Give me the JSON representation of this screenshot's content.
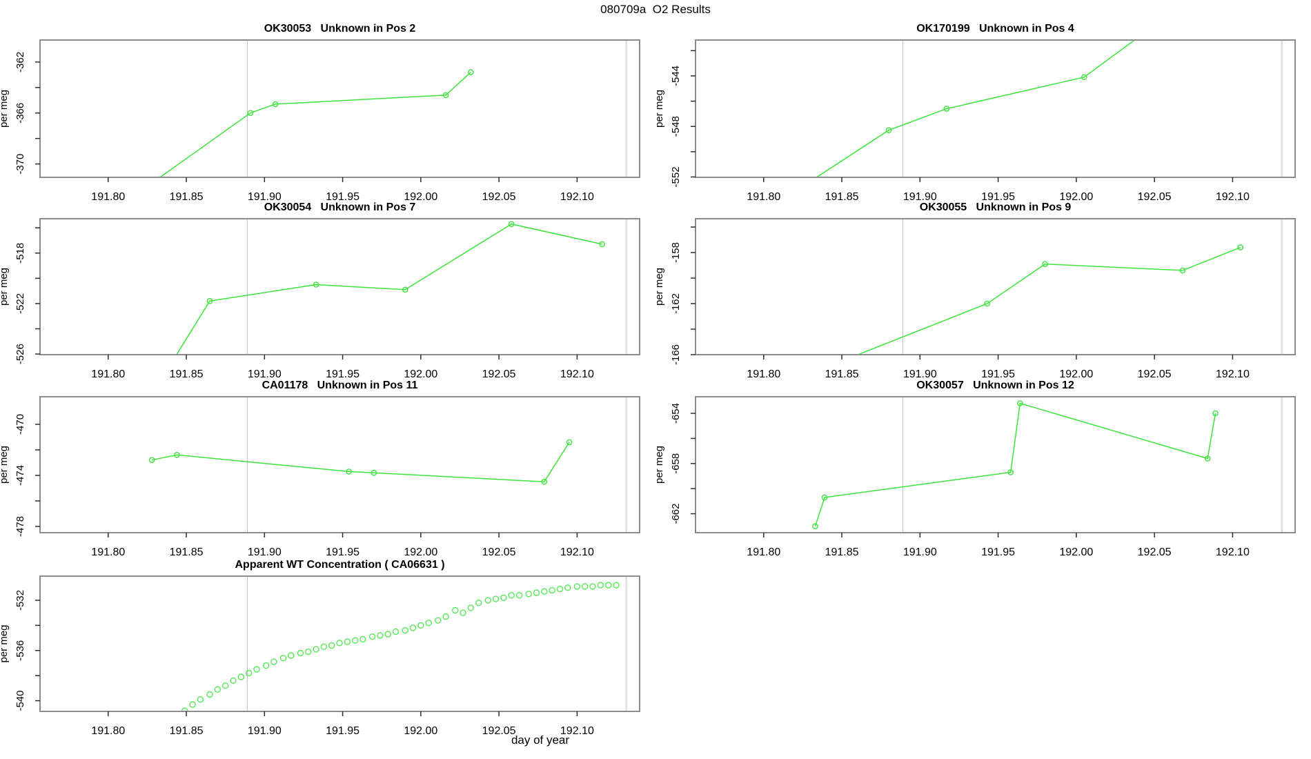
{
  "page_title": "080709a  O2 Results",
  "x_axis_label": "day of year",
  "y_axis_label": "per meg",
  "colors": {
    "series_green": "#3be43b",
    "scatter_green": "#55e855",
    "box_gray": "#8c8c8c",
    "tick_color": "#2b2b2b",
    "text_color": "#000000",
    "refline_early": "#c6c6c6",
    "refline_late": "#e3e3e3",
    "background": "#ffffff"
  },
  "chart_data": {
    "type": "line",
    "title": "080709a  O2 Results",
    "xlabel": "day of year",
    "ylabel": "per meg",
    "xlim": [
      191.7564,
      192.14
    ],
    "x_ticks": [
      191.8,
      191.85,
      191.9,
      191.95,
      192.0,
      192.05,
      192.1
    ],
    "x_tick_labels": [
      "191.80",
      "191.85",
      "191.90",
      "191.95",
      "192.00",
      "192.05",
      "192.10"
    ],
    "reference_lines_x": [
      191.889,
      192.1315
    ],
    "grid": "off",
    "legend": "none",
    "plots": [
      {
        "title": "OK30053   Unknown in Pos 2",
        "grid_pos": {
          "row": 0,
          "col": 0
        },
        "style": "line+markers",
        "ylim": [
          -371.05,
          -360.27
        ],
        "y_ticks_labeled": [
          -362,
          -366,
          -370
        ],
        "y_ticks_minor": [
          -364,
          -368
        ],
        "points": [
          [
            191.828,
            -371.5
          ],
          [
            191.891,
            -366.0
          ],
          [
            191.907,
            -365.3
          ],
          [
            192.016,
            -364.6
          ],
          [
            192.032,
            -362.8
          ]
        ]
      },
      {
        "title": "OK170199   Unknown in Pos 4",
        "grid_pos": {
          "row": 0,
          "col": 1
        },
        "style": "line+markers",
        "ylim": [
          -552.03,
          -541.16
        ],
        "y_ticks_labeled": [
          -544,
          -548,
          -552
        ],
        "y_ticks_minor": [
          -542,
          -546,
          -550
        ],
        "points": [
          [
            191.828,
            -552.5
          ],
          [
            191.88,
            -548.3
          ],
          [
            191.917,
            -546.6
          ],
          [
            192.005,
            -544.1
          ],
          [
            192.05,
            -540.0
          ]
        ]
      },
      {
        "title": "OK30054   Unknown in Pos 7",
        "grid_pos": {
          "row": 1,
          "col": 0
        },
        "style": "line+markers",
        "ylim": [
          -526.05,
          -515.28
        ],
        "y_ticks_labeled": [
          -518,
          -522,
          -526
        ],
        "y_ticks_minor": [
          -516,
          -520,
          -524
        ],
        "points": [
          [
            191.84,
            -526.8
          ],
          [
            191.865,
            -521.8
          ],
          [
            191.933,
            -520.5
          ],
          [
            191.99,
            -520.9
          ],
          [
            192.058,
            -515.7
          ],
          [
            192.116,
            -517.3
          ]
        ]
      },
      {
        "title": "OK30055   Unknown in Pos 9",
        "grid_pos": {
          "row": 1,
          "col": 1
        },
        "style": "line+markers",
        "ylim": [
          -166.0,
          -155.35
        ],
        "y_ticks_labeled": [
          -158,
          -162,
          -166
        ],
        "y_ticks_minor": [
          -156,
          -160,
          -164
        ],
        "points": [
          [
            191.85,
            -166.5
          ],
          [
            191.943,
            -162.0
          ],
          [
            191.98,
            -158.9
          ],
          [
            192.068,
            -159.4
          ],
          [
            192.105,
            -157.6
          ]
        ]
      },
      {
        "title": "CA01178   Unknown in Pos 11",
        "grid_pos": {
          "row": 2,
          "col": 0
        },
        "style": "line+markers",
        "ylim": [
          -478.49,
          -467.84
        ],
        "y_ticks_labeled": [
          -470,
          -474,
          -478
        ],
        "y_ticks_minor": [
          -472,
          -476
        ],
        "points": [
          [
            191.828,
            -472.8
          ],
          [
            191.844,
            -472.4
          ],
          [
            191.954,
            -473.7
          ],
          [
            191.97,
            -473.8
          ],
          [
            192.079,
            -474.5
          ],
          [
            192.095,
            -471.4
          ]
        ]
      },
      {
        "title": "OK30057   Unknown in Pos 12",
        "grid_pos": {
          "row": 2,
          "col": 1
        },
        "style": "line+markers",
        "ylim": [
          -663.51,
          -652.68
        ],
        "y_ticks_labeled": [
          -654,
          -658,
          -662
        ],
        "y_ticks_minor": [
          -656,
          -660
        ],
        "points": [
          [
            191.833,
            -663.0
          ],
          [
            191.839,
            -660.7
          ],
          [
            191.958,
            -658.7
          ],
          [
            191.964,
            -653.2
          ],
          [
            192.084,
            -657.6
          ],
          [
            192.089,
            -654.0
          ]
        ]
      },
      {
        "title": "Apparent WT Concentration ( CA06631 )",
        "grid_pos": {
          "row": 3,
          "col": 0
        },
        "style": "markers",
        "ylim": [
          -540.85,
          -530.08
        ],
        "y_ticks_labeled": [
          -532,
          -536,
          -540
        ],
        "y_ticks_minor": [
          -534,
          -538
        ],
        "points": [
          [
            191.849,
            -540.8
          ],
          [
            191.854,
            -540.3
          ],
          [
            191.859,
            -539.9
          ],
          [
            191.865,
            -539.5
          ],
          [
            191.87,
            -539.1
          ],
          [
            191.875,
            -538.8
          ],
          [
            191.88,
            -538.4
          ],
          [
            191.885,
            -538.1
          ],
          [
            191.89,
            -537.8
          ],
          [
            191.895,
            -537.5
          ],
          [
            191.901,
            -537.2
          ],
          [
            191.906,
            -536.9
          ],
          [
            191.912,
            -536.6
          ],
          [
            191.917,
            -536.4
          ],
          [
            191.923,
            -536.2
          ],
          [
            191.928,
            -536.1
          ],
          [
            191.933,
            -535.9
          ],
          [
            191.938,
            -535.7
          ],
          [
            191.943,
            -535.6
          ],
          [
            191.948,
            -535.4
          ],
          [
            191.953,
            -535.3
          ],
          [
            191.958,
            -535.2
          ],
          [
            191.963,
            -535.1
          ],
          [
            191.969,
            -534.9
          ],
          [
            191.974,
            -534.8
          ],
          [
            191.979,
            -534.7
          ],
          [
            191.984,
            -534.5
          ],
          [
            191.99,
            -534.4
          ],
          [
            191.995,
            -534.2
          ],
          [
            192.0,
            -534.0
          ],
          [
            192.005,
            -533.8
          ],
          [
            192.011,
            -533.6
          ],
          [
            192.016,
            -533.3
          ],
          [
            192.022,
            -532.8
          ],
          [
            192.027,
            -533.0
          ],
          [
            192.032,
            -532.6
          ],
          [
            192.037,
            -532.2
          ],
          [
            192.043,
            -532.0
          ],
          [
            192.048,
            -531.9
          ],
          [
            192.053,
            -531.8
          ],
          [
            192.058,
            -531.6
          ],
          [
            192.063,
            -531.6
          ],
          [
            192.069,
            -531.5
          ],
          [
            192.074,
            -531.4
          ],
          [
            192.079,
            -531.3
          ],
          [
            192.084,
            -531.2
          ],
          [
            192.089,
            -531.1
          ],
          [
            192.094,
            -531.0
          ],
          [
            192.1,
            -530.9
          ],
          [
            192.105,
            -530.9
          ],
          [
            192.11,
            -530.9
          ],
          [
            192.115,
            -530.8
          ],
          [
            192.12,
            -530.8
          ],
          [
            192.125,
            -530.8
          ]
        ]
      }
    ]
  }
}
